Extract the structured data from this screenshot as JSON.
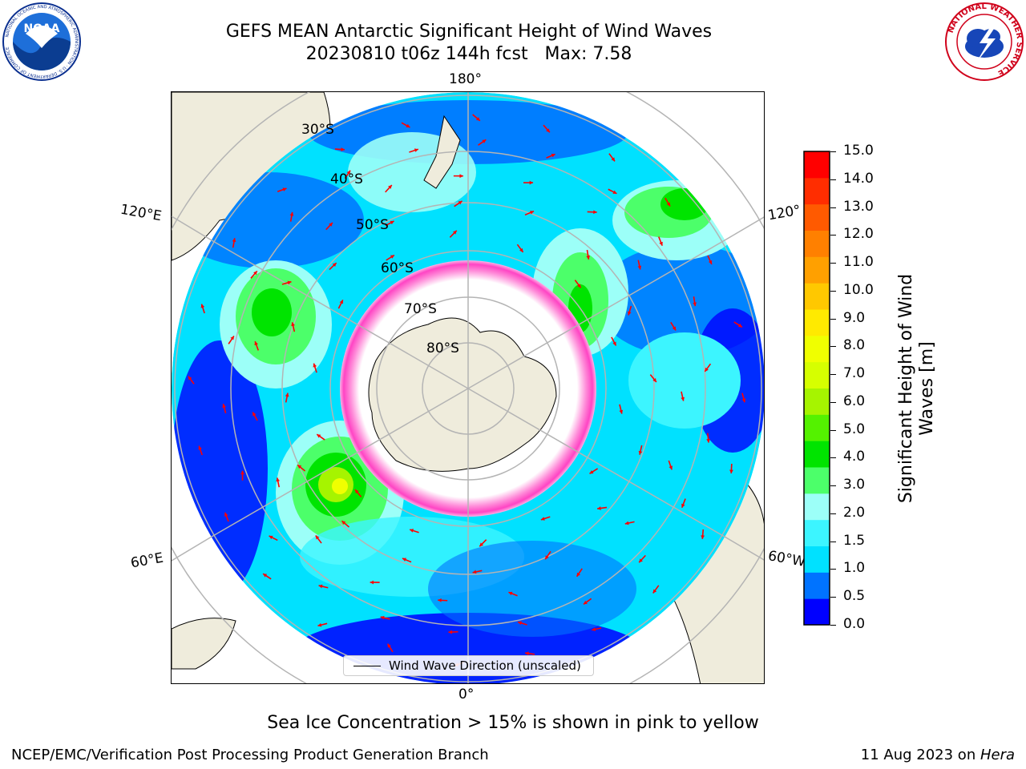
{
  "header": {
    "title_line1": "GEFS MEAN Antarctic Significant Height of Wind Waves",
    "title_line2": "20230810 t06z 144h fcst   Max: 7.58"
  },
  "logos": {
    "noaa": {
      "center_text": "NOAA",
      "ring_text": "NATIONAL OCEANIC AND ATMOSPHERIC ADMINISTRATION · U.S. DEPARTMENT OF COMMERCE",
      "color": "#0a2f8f"
    },
    "nws": {
      "ring_text": "NATIONAL WEATHER SERVICE",
      "color": "#d0021b"
    }
  },
  "map": {
    "projection": "south-polar-stereographic",
    "longitude_labels": {
      "top": "180°",
      "bottom": "0°",
      "left_upper": "120°E",
      "left_lower": "60°E",
      "right_upper": "120°",
      "right_lower": "60°W"
    },
    "latitude_labels": [
      "30°S",
      "40°S",
      "50°S",
      "60°S",
      "70°S",
      "80°S"
    ],
    "legend_label": "Wind Wave Direction (unscaled)",
    "arrow_color": "#ff0000",
    "land_color": "#efecdc"
  },
  "colorbar": {
    "label": "Significant Height of Wind Waves [m]",
    "ticks": [
      "15.0",
      "14.0",
      "13.0",
      "12.0",
      "11.0",
      "10.0",
      "9.0",
      "8.0",
      "7.0",
      "6.0",
      "5.0",
      "4.0",
      "3.0",
      "2.0",
      "1.5",
      "1.0",
      "0.5",
      "0.0"
    ],
    "colors_bottom_to_top": [
      "#0000ff",
      "#0073ff",
      "#00e1ff",
      "#3cf5ff",
      "#9cfff8",
      "#4cff6a",
      "#00e400",
      "#54f200",
      "#a6f400",
      "#d6ff00",
      "#f0ff00",
      "#ffea00",
      "#ffc800",
      "#ffa000",
      "#ff8000",
      "#ff5a00",
      "#ff2d00",
      "#ff0000"
    ]
  },
  "footer": {
    "note": "Sea Ice Concentration > 15% is shown in pink to yellow",
    "credit": "NCEP/EMC/Verification Post Processing Product Generation Branch",
    "date_text": "11 Aug 2023 on ",
    "host": "Hera"
  }
}
